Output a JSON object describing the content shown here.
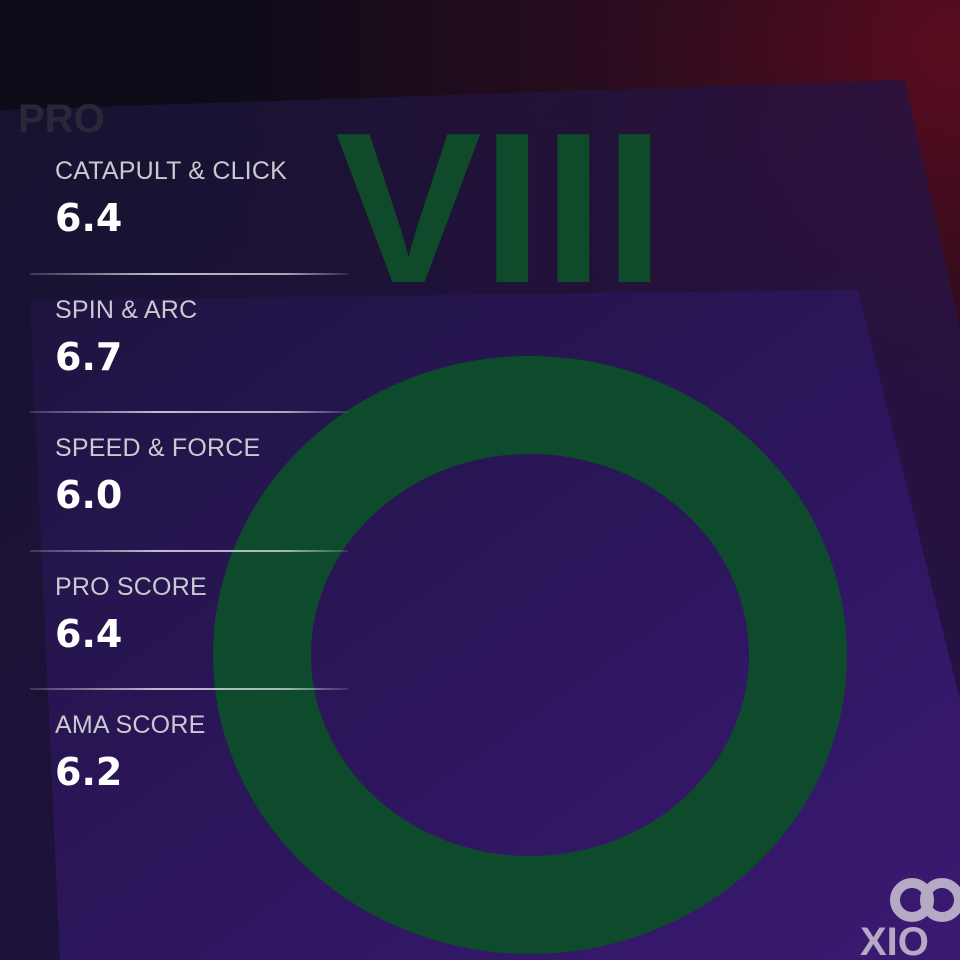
{
  "background_art": {
    "sheet_lettering": "VIII",
    "faint_text": "PRO",
    "logo_text": "XIO"
  },
  "colors": {
    "label": "#c9c9cf",
    "value": "#ffffff",
    "ring": "#0e4a2c",
    "sheet": "#2e1656"
  },
  "stats": [
    {
      "label": "CATAPULT & CLICK",
      "value": "6.4"
    },
    {
      "label": "SPIN & ARC",
      "value": "6.7"
    },
    {
      "label": "SPEED & FORCE",
      "value": "6.0"
    },
    {
      "label": "PRO SCORE",
      "value": "6.4"
    },
    {
      "label": "AMA SCORE",
      "value": "6.2"
    }
  ]
}
